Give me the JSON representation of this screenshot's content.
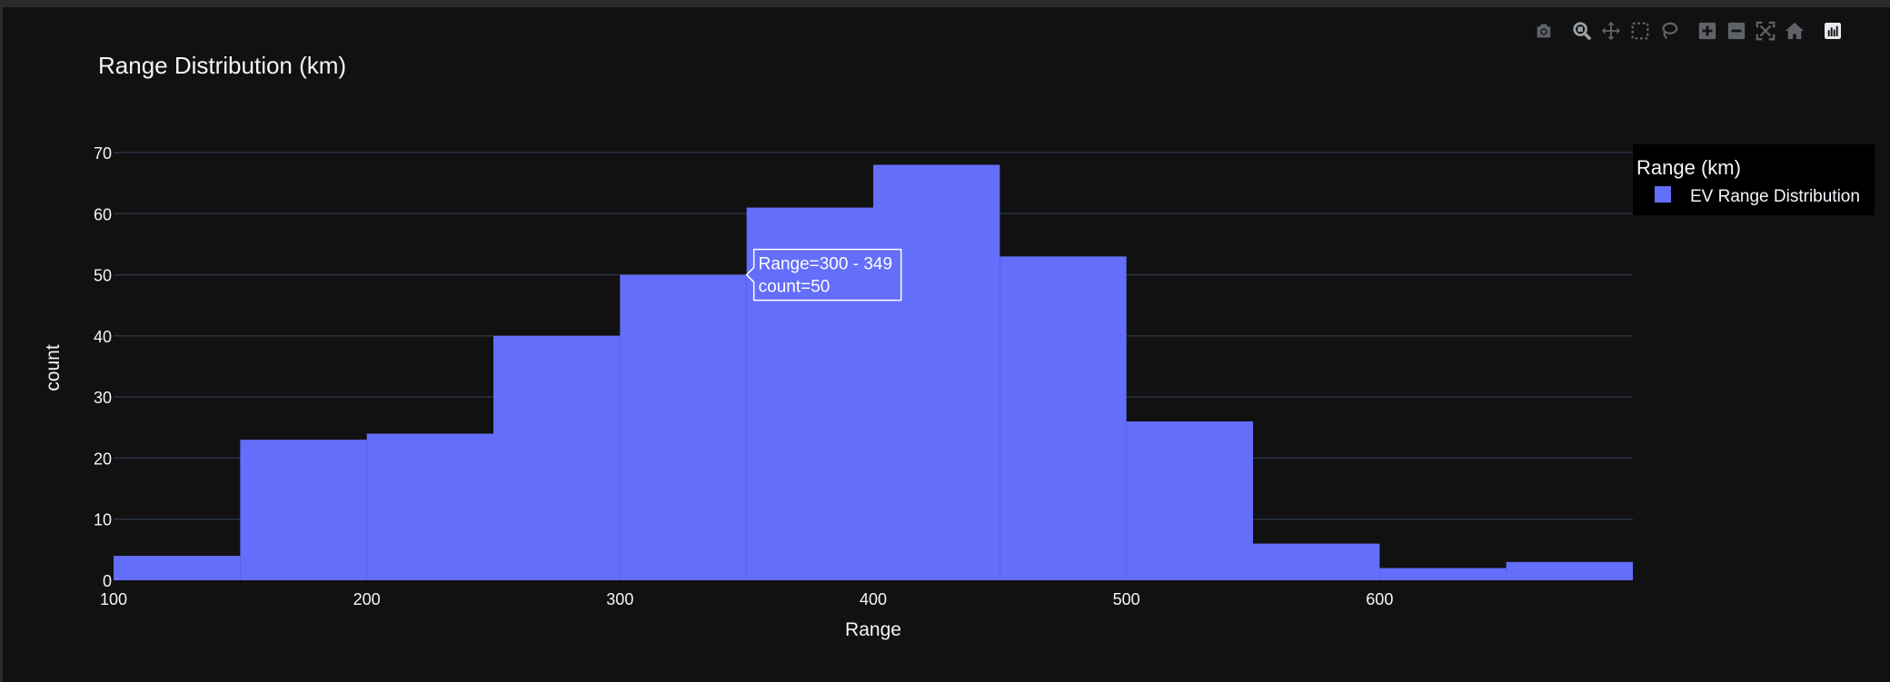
{
  "modebar": {
    "items": [
      {
        "icon": "camera-icon"
      },
      {
        "icon": "zoom-icon"
      },
      {
        "icon": "pan-icon"
      },
      {
        "icon": "box-select-icon"
      },
      {
        "icon": "lasso-select-icon"
      },
      {
        "icon": "zoom-in-icon"
      },
      {
        "icon": "zoom-out-icon"
      },
      {
        "icon": "autoscale-icon"
      },
      {
        "icon": "reset-axes-icon"
      },
      {
        "icon": "plotly-logo-icon"
      }
    ]
  },
  "chart_data": {
    "type": "bar",
    "title": "Range Distribution (km)",
    "xlabel": "Range",
    "ylabel": "count",
    "bin_edges": [
      100,
      150,
      200,
      250,
      300,
      350,
      400,
      450,
      500,
      550,
      600,
      650,
      700
    ],
    "values": [
      4,
      23,
      24,
      40,
      50,
      61,
      68,
      53,
      26,
      6,
      2,
      3
    ],
    "xlim": [
      100,
      700
    ],
    "ylim": [
      0,
      70
    ],
    "xticks": [
      100,
      200,
      300,
      400,
      500,
      600
    ],
    "yticks": [
      0,
      10,
      20,
      30,
      40,
      50,
      60,
      70
    ],
    "grid": true,
    "legend": {
      "title": "Range (km)",
      "position": "top-right",
      "entries": [
        {
          "name": "EV Range Distribution",
          "color": "#636efa"
        }
      ]
    },
    "tooltip": {
      "lines": [
        "Range=300 - 349",
        "count=50"
      ],
      "bin_index": 4
    },
    "colors": {
      "bar": "#636efa",
      "background": "#111111",
      "grid": "#283442",
      "text": "#f2f5fa"
    }
  }
}
